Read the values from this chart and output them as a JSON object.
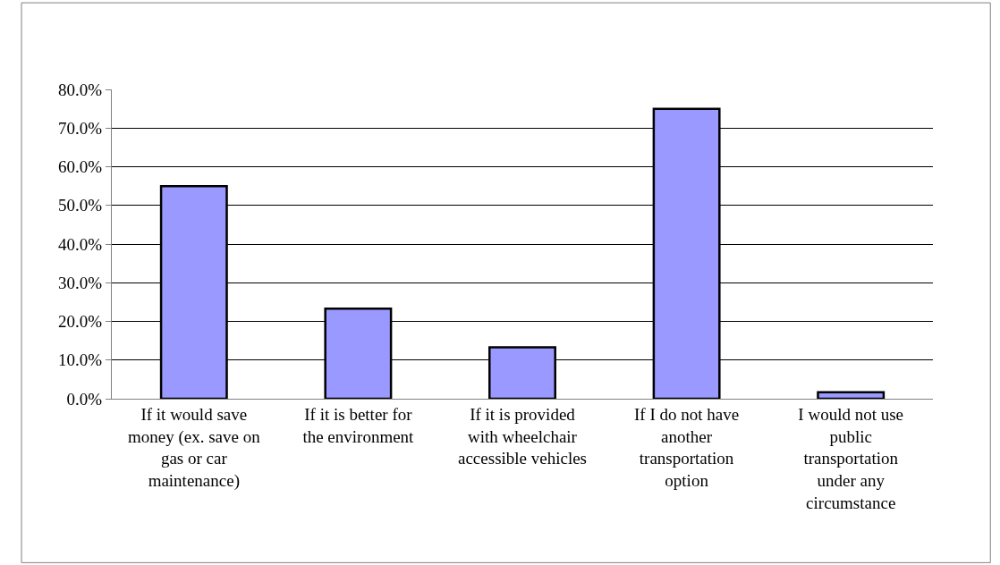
{
  "chart_data": {
    "type": "bar",
    "categories": [
      "If it would save money (ex. save on gas or car maintenance)",
      "If it is better for the environment",
      "If it is provided with wheelchair accessible vehicles",
      "If I do not have another transportation option",
      "I would not use public transportation under any circumstance"
    ],
    "values": [
      55.0,
      23.3,
      13.3,
      75.0,
      1.7
    ],
    "color": "#9999ff",
    "ylim": [
      0,
      80
    ],
    "yticks": [
      {
        "value": 0,
        "label": "0.0%"
      },
      {
        "value": 10,
        "label": "10.0%"
      },
      {
        "value": 20,
        "label": "20.0%"
      },
      {
        "value": 30,
        "label": "30.0%"
      },
      {
        "value": 40,
        "label": "40.0%"
      },
      {
        "value": 50,
        "label": "50.0%"
      },
      {
        "value": 60,
        "label": "60.0%"
      },
      {
        "value": 70,
        "label": "70.0%"
      },
      {
        "value": 80,
        "label": "80.0%"
      }
    ],
    "grid": "y",
    "legend": false
  }
}
